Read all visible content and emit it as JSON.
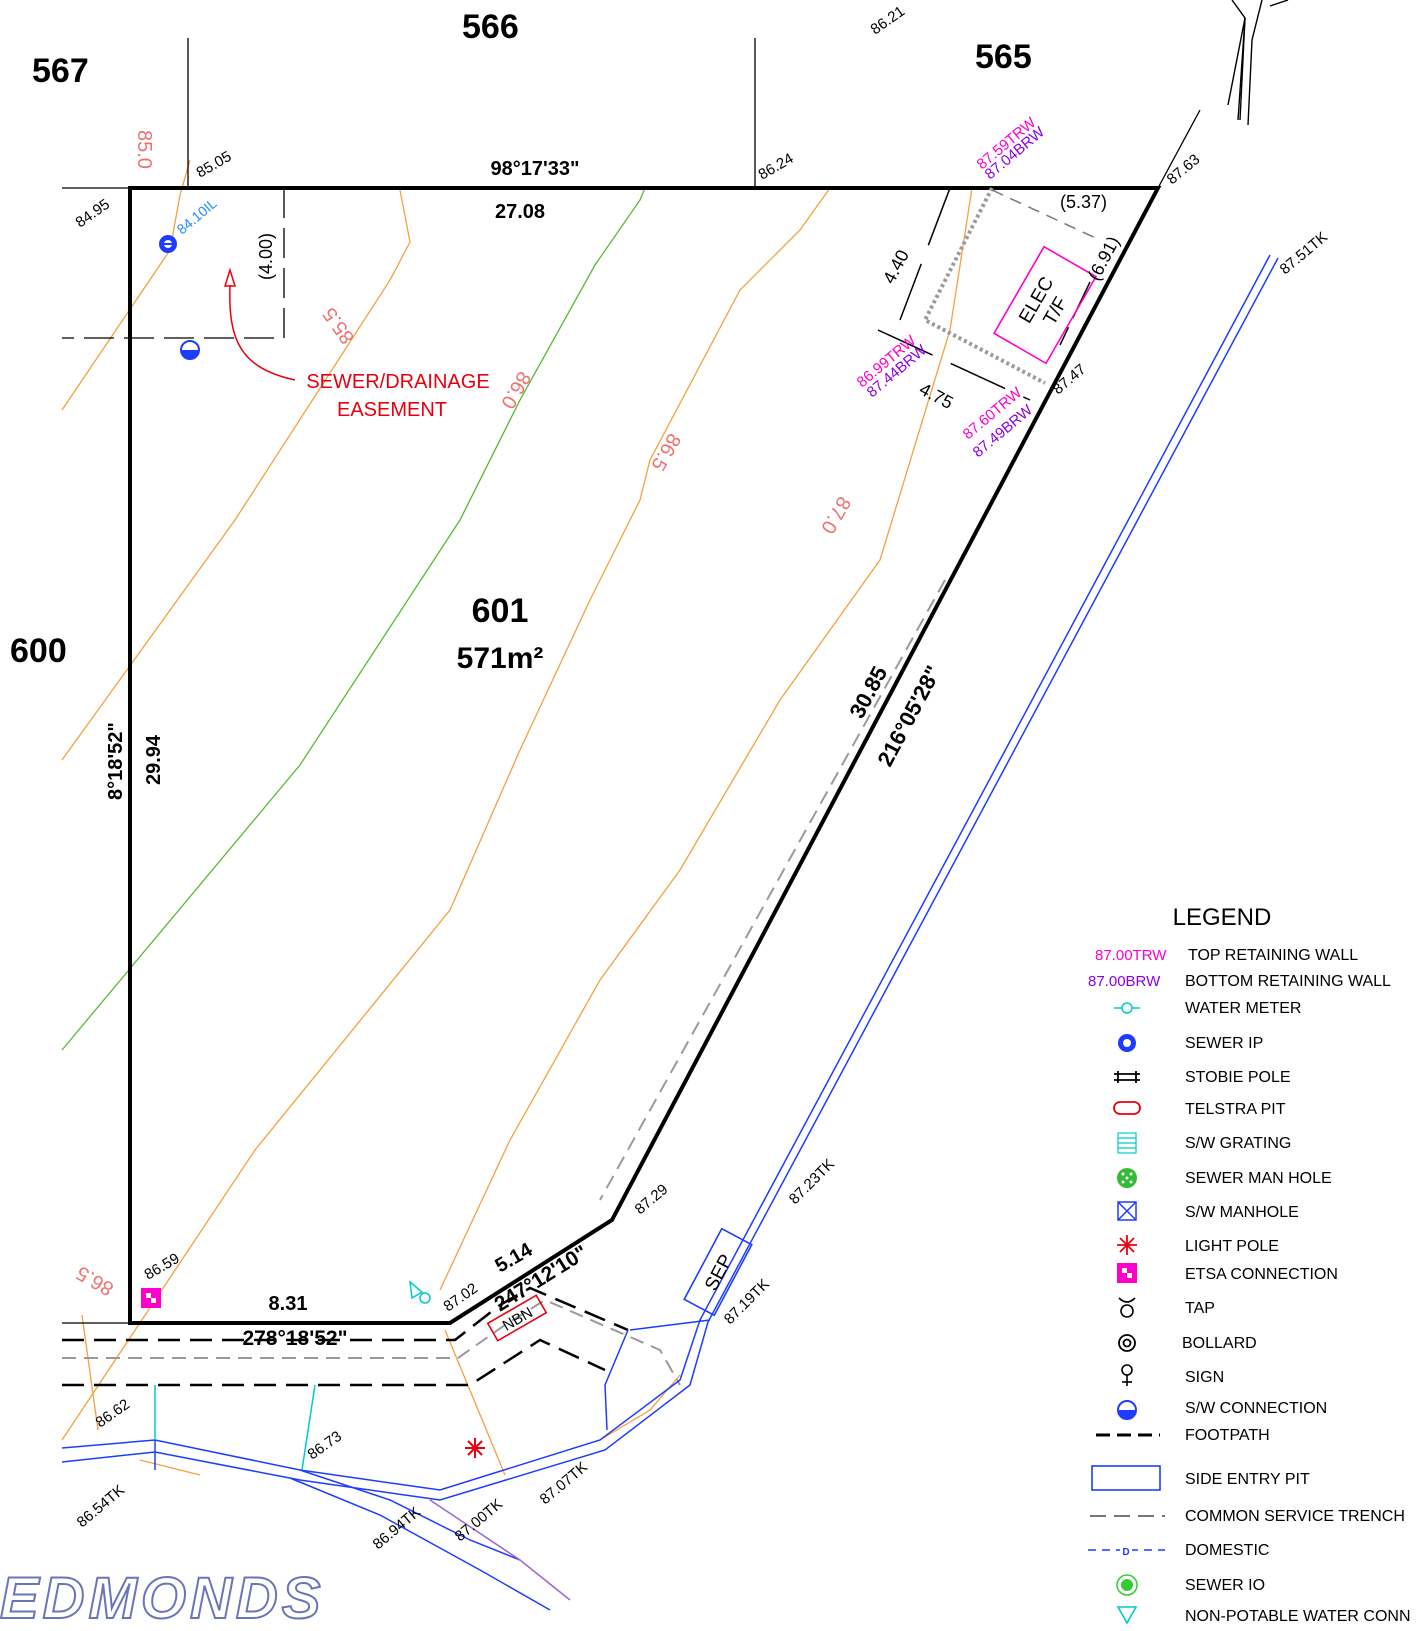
{
  "lots": {
    "lot_567": "567",
    "lot_566": "566",
    "lot_565": "565",
    "lot_600": "600",
    "lot_601": "601",
    "lot_601_area": "571m²"
  },
  "dimensions": {
    "top_bearing": "98°17'33\"",
    "top_length": "27.08",
    "left_bearing": "8°18'52\"",
    "left_length": "29.94",
    "diag_length": "30.85",
    "diag_bearing": "216°05'28\"",
    "bottom_length": "8.31",
    "bottom_bearing": "278°18'52\"",
    "front_length": "5.14",
    "front_bearing": "247°12'10\"",
    "easement_width": "(4.00)",
    "tf_top": "(5.37)",
    "tf_side": "(6.91)",
    "tf_left": "4.40",
    "tf_bottom": "4.75"
  },
  "levels": {
    "l_8621": "86.21",
    "l_8505": "85.05",
    "l_8624": "86.24",
    "l_8495": "84.95",
    "l_8763": "87.63",
    "l_8751tk": "87.51TK",
    "l_8747": "87.47",
    "l_8410il": "84.10IL",
    "l_8659": "86.59",
    "l_8702": "87.02",
    "l_8729": "87.29",
    "l_8723tk": "87.23TK",
    "l_8719tk": "87.19TK",
    "l_8662": "86.62",
    "l_8673": "86.73",
    "l_8654tk": "86.54TK",
    "l_8694tk": "86.94TK",
    "l_8700tk": "87.00TK",
    "l_8707tk": "87.07TK"
  },
  "retaining_walls": {
    "trw_1": "87.59TRW",
    "brw_1": "87.04BRW",
    "trw_2": "86.99TRW",
    "brw_2": "87.44BRW",
    "trw_3": "87.60TRW",
    "brw_3": "87.49BRW"
  },
  "contours": {
    "c_850": "85.0",
    "c_855": "85.5",
    "c_860": "86.0",
    "c_865": "86.5",
    "c_870": "87.0",
    "c_865_low": "86.5"
  },
  "annotations": {
    "easement_line1": "SEWER/DRAINAGE",
    "easement_line2": "EASEMENT",
    "elec_line1": "ELEC",
    "elec_line2": "T/F",
    "sep": "SEP",
    "nbn": "NBN"
  },
  "legend": {
    "title": "LEGEND",
    "trw_sample": "87.00TRW",
    "brw_sample": "87.00BRW",
    "items": [
      {
        "label": "TOP RETAINING WALL",
        "icon": "trw-text"
      },
      {
        "label": "BOTTOM RETAINING WALL",
        "icon": "brw-text"
      },
      {
        "label": "WATER METER",
        "icon": "water-meter-icon"
      },
      {
        "label": "SEWER IP",
        "icon": "sewer-ip-icon"
      },
      {
        "label": "STOBIE POLE",
        "icon": "stobie-pole-icon"
      },
      {
        "label": "TELSTRA PIT",
        "icon": "telstra-pit-icon"
      },
      {
        "label": "S/W GRATING",
        "icon": "sw-grating-icon"
      },
      {
        "label": "SEWER MAN HOLE",
        "icon": "sewer-manhole-icon"
      },
      {
        "label": "S/W MANHOLE",
        "icon": "sw-manhole-icon"
      },
      {
        "label": "LIGHT POLE",
        "icon": "light-pole-icon"
      },
      {
        "label": "ETSA CONNECTION",
        "icon": "etsa-connection-icon"
      },
      {
        "label": "TAP",
        "icon": "tap-icon"
      },
      {
        "label": "BOLLARD",
        "icon": "bollard-icon"
      },
      {
        "label": "SIGN",
        "icon": "sign-icon"
      },
      {
        "label": "S/W CONNECTION",
        "icon": "sw-connection-icon"
      },
      {
        "label": "FOOTPATH",
        "icon": "footpath-icon"
      },
      {
        "label": "SIDE ENTRY PIT",
        "icon": "side-entry-pit-icon"
      },
      {
        "label": "COMMON SERVICE TRENCH",
        "icon": "common-service-trench-icon"
      },
      {
        "label": "DOMESTIC",
        "icon": "domestic-icon"
      },
      {
        "label": "SEWER IO",
        "icon": "sewer-io-icon"
      },
      {
        "label": "NON-POTABLE WATER CONN",
        "icon": "non-potable-water-icon"
      }
    ]
  },
  "brand": "EDMONDS",
  "colors": {
    "boundary": "#000000",
    "contour_orange": "#f5a040",
    "contour_green": "#55bb33",
    "contour_label": "#f07070",
    "easement_red": "#e8000f",
    "trw_magenta": "#ff00cc",
    "brw_purple": "#8a00e6",
    "kerb_blue": "#1e3cff",
    "cyan": "#00cccc"
  }
}
